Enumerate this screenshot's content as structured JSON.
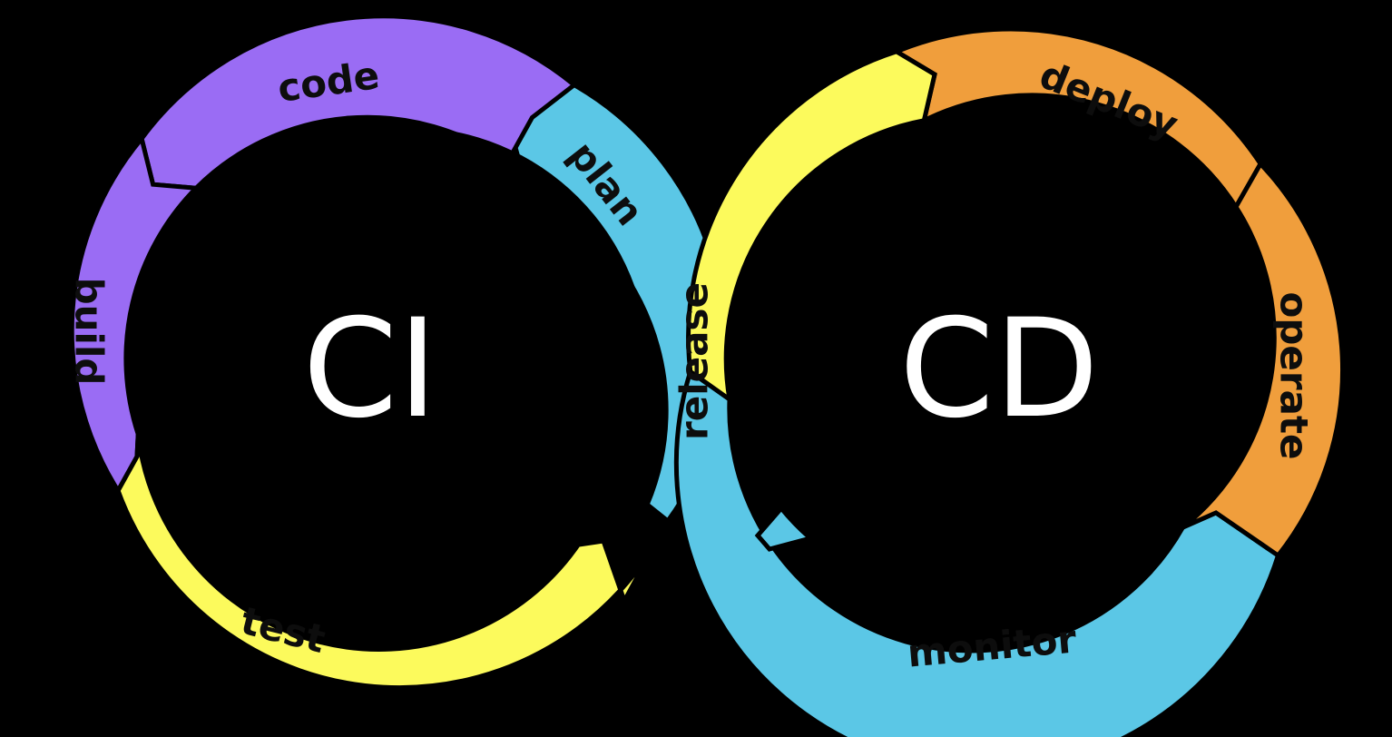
{
  "diagram": {
    "ci_title": "CI",
    "cd_title": "CD",
    "stages": {
      "plan": "plan",
      "code": "code",
      "build": "build",
      "test": "test",
      "release": "release",
      "deploy": "deploy",
      "operate": "operate",
      "monitor": "monitor"
    }
  },
  "colors": {
    "background": "#000000",
    "purple": "#9a6cf4",
    "blue": "#5bc7e6",
    "yellow": "#fcfa5c",
    "orange": "#f09e3c",
    "text_dark": "#0d0d0d",
    "text_light": "#ffffff"
  }
}
